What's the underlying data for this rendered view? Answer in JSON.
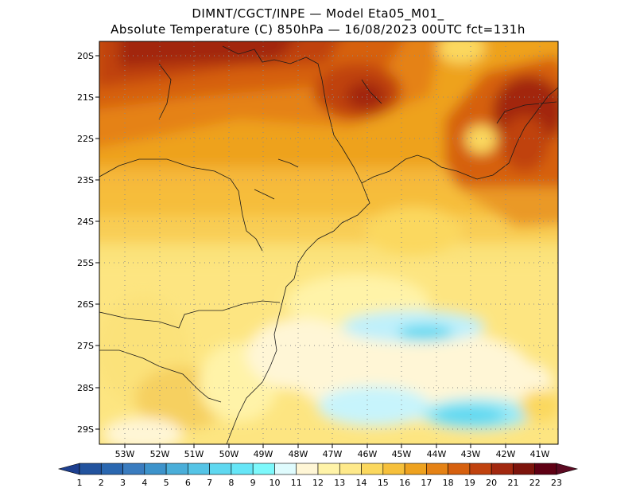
{
  "title": {
    "line1": "DIMNT/CGCT/INPE —  Model Eta05_M01_",
    "line2": "Absolute Temperature (C) 850hPa —  16/08/2023 00UTC fct=131h"
  },
  "map": {
    "lat_labels": [
      "20S",
      "21S",
      "22S",
      "23S",
      "24S",
      "25S",
      "26S",
      "27S",
      "28S",
      "29S"
    ],
    "lon_labels": [
      "53W",
      "52W",
      "51W",
      "50W",
      "49W",
      "48W",
      "47W",
      "46W",
      "45W",
      "44W",
      "43W",
      "42W",
      "41W"
    ],
    "grid": "dotted"
  },
  "colorbar": {
    "values": [
      "1",
      "2",
      "3",
      "4",
      "5",
      "6",
      "7",
      "8",
      "9",
      "10",
      "11",
      "12",
      "13",
      "14",
      "15",
      "16",
      "17",
      "18",
      "19",
      "20",
      "21",
      "22",
      "23"
    ],
    "colors": [
      "#1d3f8f",
      "#22539e",
      "#2a67b0",
      "#3a7cbf",
      "#3d93cb",
      "#4aaed9",
      "#55c4e6",
      "#5fd8f0",
      "#66e6f7",
      "#7df8fb",
      "#dffbfd",
      "#fff6d6",
      "#fff3a8",
      "#fee98a",
      "#fbd85e",
      "#f6c03b",
      "#eea21f",
      "#e58215",
      "#d6600e",
      "#c0420e",
      "#a2280f",
      "#7d140c",
      "#5f0014",
      "#5c0a22"
    ]
  }
}
